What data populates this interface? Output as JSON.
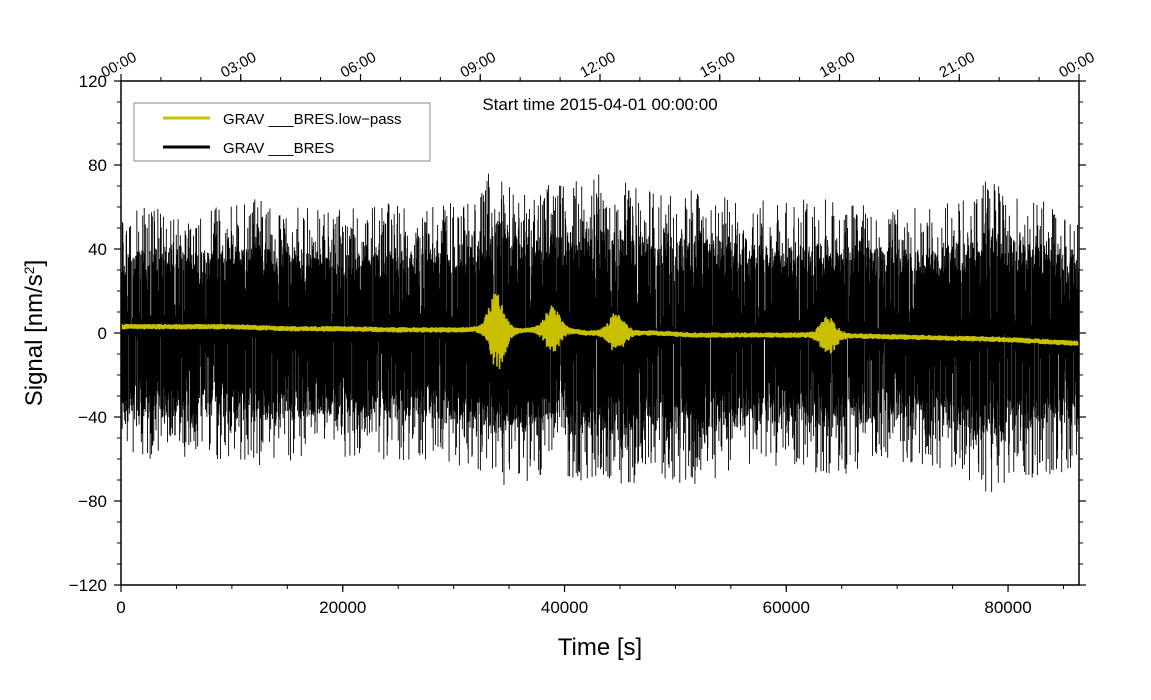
{
  "chart_data": {
    "type": "line",
    "title": "",
    "annotation": "Start time 2015-04-01 00:00:00",
    "xlabel": "Time [s]",
    "ylabel_main": "Signal [nm/s",
    "ylabel_sup": "2",
    "ylabel_end": "]",
    "xlim": [
      0,
      86400
    ],
    "ylim": [
      -120,
      120
    ],
    "x_ticks": [
      0,
      20000,
      40000,
      60000,
      80000
    ],
    "x_tick_labels": [
      "0",
      "20000",
      "40000",
      "60000",
      "80000"
    ],
    "y_ticks": [
      -120,
      -80,
      -40,
      0,
      40,
      80,
      120
    ],
    "y_tick_labels": [
      "−120",
      "−80",
      "−40",
      "0",
      "40",
      "80",
      "120"
    ],
    "top_axis": {
      "ticks": [
        0,
        10800,
        21600,
        32400,
        43200,
        54000,
        64800,
        75600,
        86400
      ],
      "labels": [
        "00:00",
        "03:00",
        "06:00",
        "09:00",
        "12:00",
        "15:00",
        "18:00",
        "21:00",
        "00:00"
      ]
    },
    "legend": {
      "position": "top-left",
      "entries": [
        {
          "label": "GRAV ___BRES.low−pass",
          "color": "#c8c000"
        },
        {
          "label": "GRAV ___BRES",
          "color": "#000000"
        }
      ]
    },
    "series": [
      {
        "name": "GRAV ___BRES",
        "color": "#000000",
        "x": [
          0,
          2700,
          5400,
          8100,
          10800,
          13500,
          16200,
          18900,
          21600,
          24300,
          27000,
          29700,
          32400,
          34000,
          35100,
          37800,
          40500,
          43200,
          45900,
          48600,
          51300,
          54000,
          56700,
          59400,
          62100,
          64800,
          67500,
          70200,
          72900,
          75600,
          78300,
          81000,
          83700,
          86400
        ],
        "envelope_upper": [
          55,
          62,
          58,
          60,
          62,
          66,
          60,
          58,
          60,
          62,
          60,
          62,
          66,
          88,
          72,
          70,
          72,
          76,
          72,
          66,
          68,
          66,
          64,
          62,
          64,
          66,
          62,
          60,
          62,
          64,
          74,
          66,
          62,
          62
        ],
        "envelope_lower": [
          -56,
          -62,
          -60,
          -60,
          -62,
          -64,
          -60,
          -58,
          -60,
          -62,
          -60,
          -62,
          -66,
          -74,
          -72,
          -70,
          -70,
          -74,
          -72,
          -68,
          -76,
          -70,
          -66,
          -64,
          -66,
          -68,
          -64,
          -62,
          -64,
          -66,
          -78,
          -70,
          -68,
          -66
        ]
      },
      {
        "name": "GRAV ___BRES.low-pass",
        "color": "#c8c000",
        "x": [
          0,
          5000,
          10000,
          15000,
          20000,
          25000,
          30000,
          33500,
          34200,
          36000,
          39000,
          42000,
          45000,
          48000,
          52000,
          56000,
          60000,
          63800,
          67000,
          71000,
          75000,
          79000,
          83000,
          86400
        ],
        "values": [
          3,
          3,
          3,
          2,
          2,
          1.5,
          1.5,
          2,
          0,
          1,
          2,
          0,
          0,
          0,
          -1,
          -1,
          -1,
          -1,
          -1.5,
          -2,
          -2.5,
          -3,
          -4,
          -5
        ],
        "bursts": [
          {
            "x": 33900,
            "amplitude": 18
          },
          {
            "x": 38900,
            "amplitude": 10
          },
          {
            "x": 44700,
            "amplitude": 9
          },
          {
            "x": 63800,
            "amplitude": 8
          }
        ]
      }
    ]
  }
}
